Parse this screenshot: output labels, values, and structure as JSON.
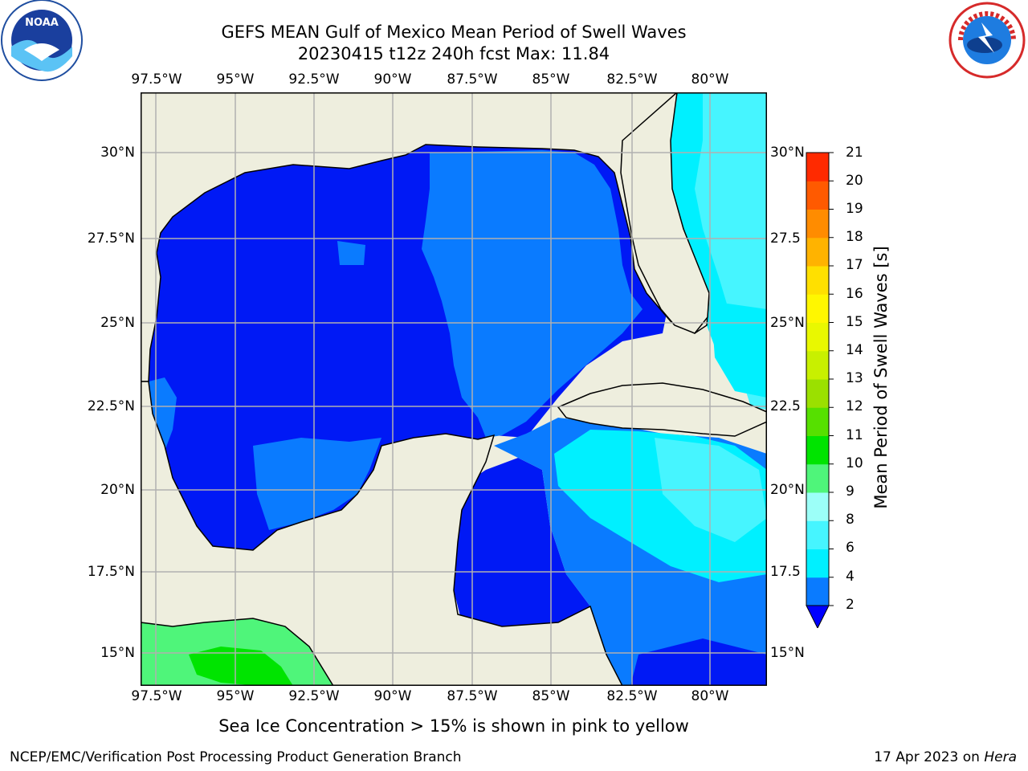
{
  "title_line1": "GEFS MEAN Gulf of Mexico Mean Period of Swell Waves",
  "title_line2": "20230415 t12z 240h fcst   Max: 11.84",
  "lon_labels": [
    "97.5°W",
    "95°W",
    "92.5°W",
    "90°W",
    "87.5°W",
    "85°W",
    "82.5°W",
    "80°W"
  ],
  "lat_labels": [
    "30°N",
    "27.5°N",
    "25°N",
    "22.5°N",
    "20°N",
    "17.5°N",
    "15°N"
  ],
  "lat_labels_right": [
    "30°N",
    "27.5",
    "25°N",
    "22.5",
    "20°N",
    "17.5",
    "15°N"
  ],
  "colorbar": {
    "title": "Mean Period of Swell Waves [s]",
    "ticks": [
      "2",
      "4",
      "6",
      "8",
      "9",
      "10",
      "11",
      "12",
      "13",
      "14",
      "15",
      "16",
      "17",
      "18",
      "19",
      "20",
      "21"
    ],
    "colors": [
      "#0a7bff",
      "#00f0ff",
      "#46f5ff",
      "#9cfff8",
      "#4ff57a",
      "#00e400",
      "#56e000",
      "#9be000",
      "#c8f000",
      "#e9f800",
      "#fff700",
      "#ffe000",
      "#ffb300",
      "#ff8c00",
      "#ff5a00",
      "#ff2a00"
    ],
    "extend_color": "#0000ff"
  },
  "map_colors": {
    "land": "#eeeede",
    "deep": "#0019f5",
    "mid": "#0a7bff",
    "light": "#00f0ff",
    "lighter": "#46f5ff",
    "green": "#4ff57a",
    "bright_green": "#00e400",
    "grid": "#b0b0b0"
  },
  "sea_ice_note": "Sea Ice Concentration > 15% is shown in pink to yellow",
  "footer_left": "NCEP/EMC/Verification Post Processing Product Generation Branch",
  "footer_date": "17 Apr 2023 on ",
  "footer_host": "Hera",
  "logos": {
    "left": "NOAA",
    "right": "NATIONAL WEATHER SERVICE"
  }
}
